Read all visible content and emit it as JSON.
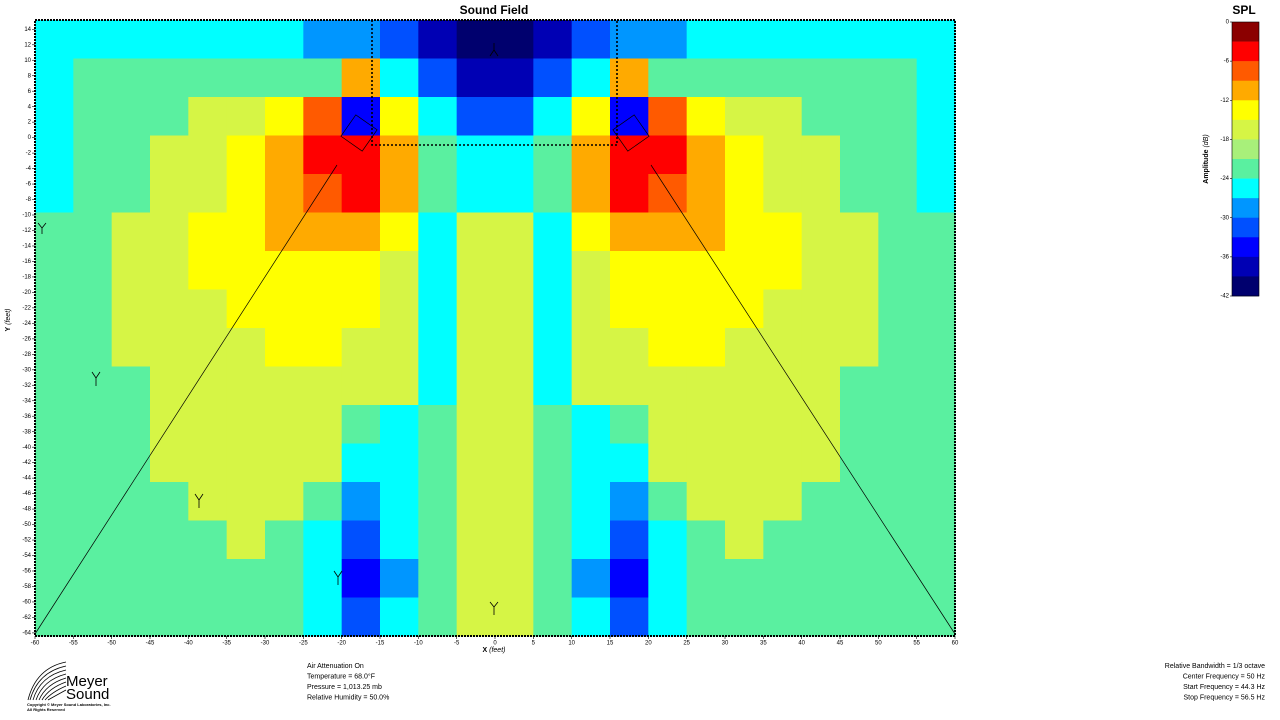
{
  "chart_data": {
    "type": "heatmap",
    "title": "Sound Field",
    "xlabel": "X",
    "xunit": "(feet)",
    "ylabel": "Y",
    "yunit": "(feet)",
    "xlim": [
      -60,
      60
    ],
    "ylim": [
      -64.4,
      15.2
    ],
    "xticks": [
      -60,
      -55,
      -50,
      -45,
      -40,
      -35,
      -30,
      -25,
      -20,
      -15,
      -10,
      -5,
      0,
      5,
      10,
      15,
      20,
      25,
      30,
      35,
      40,
      45,
      50,
      55,
      60
    ],
    "yticks": [
      14,
      12,
      10,
      8,
      6,
      4,
      2,
      0,
      -2,
      -4,
      -6,
      -8,
      -10,
      -12,
      -14,
      -16,
      -18,
      -20,
      -22,
      -24,
      -26,
      -28,
      -30,
      -32,
      -34,
      -36,
      -38,
      -40,
      -42,
      -44,
      -46,
      -48,
      -50,
      -52,
      -54,
      -56,
      -58,
      -60,
      -62,
      -64
    ],
    "colorbar_title": "SPL",
    "colorbar_label": "Amplitude",
    "colorbar_unit": "(dB)",
    "zlim": [
      -42,
      0
    ],
    "zticks": [
      0,
      -6,
      -12,
      -18,
      -24,
      -30,
      -36,
      -42
    ],
    "colors": [
      "#8b0000",
      "#ff0000",
      "#ff5a00",
      "#ffaa00",
      "#ffff00",
      "#d6f545",
      "#a8f07a",
      "#5af0a0",
      "#00ffff",
      "#0096ff",
      "#0050ff",
      "#0000ff",
      "#0000b4",
      "#00006e"
    ],
    "z": [
      [
        -25.5,
        -25.5,
        -25.5,
        -25.5,
        -25.5,
        -25.5,
        -25.5,
        -28.5,
        -28.5,
        -31.5,
        -37.5,
        -40.5,
        -40.5,
        -37.5,
        -31.5,
        -28.5,
        -28.5,
        -25.5,
        -25.5,
        -25.5,
        -25.5,
        -25.5,
        -25.5,
        -25.5
      ],
      [
        -25.5,
        -22.5,
        -22.5,
        -22.5,
        -22.5,
        -22.5,
        -22.5,
        -22.5,
        -10.5,
        -25.5,
        -31.5,
        -37.5,
        -37.5,
        -31.5,
        -25.5,
        -10.5,
        -22.5,
        -22.5,
        -22.5,
        -22.5,
        -22.5,
        -22.5,
        -22.5,
        -25.5
      ],
      [
        -25.5,
        -22.5,
        -22.5,
        -22.5,
        -16.5,
        -16.5,
        -13.5,
        -7.5,
        -34.5,
        -13.5,
        -25.5,
        -31.5,
        -31.5,
        -25.5,
        -13.5,
        -34.5,
        -7.5,
        -13.5,
        -16.5,
        -16.5,
        -22.5,
        -22.5,
        -22.5,
        -25.5
      ],
      [
        -25.5,
        -22.5,
        -22.5,
        -16.5,
        -16.5,
        -13.5,
        -10.5,
        -4.5,
        -4.5,
        -10.5,
        -22.5,
        -25.5,
        -25.5,
        -22.5,
        -10.5,
        -4.5,
        -4.5,
        -10.5,
        -13.5,
        -16.5,
        -16.5,
        -22.5,
        -22.5,
        -25.5
      ],
      [
        -25.5,
        -22.5,
        -22.5,
        -16.5,
        -16.5,
        -13.5,
        -10.5,
        -7.5,
        -4.5,
        -10.5,
        -22.5,
        -25.5,
        -25.5,
        -22.5,
        -10.5,
        -4.5,
        -7.5,
        -10.5,
        -13.5,
        -16.5,
        -16.5,
        -22.5,
        -22.5,
        -25.5
      ],
      [
        -22.5,
        -22.5,
        -16.5,
        -16.5,
        -13.5,
        -13.5,
        -10.5,
        -10.5,
        -10.5,
        -13.5,
        -25.5,
        -16.5,
        -16.5,
        -25.5,
        -13.5,
        -10.5,
        -10.5,
        -10.5,
        -13.5,
        -13.5,
        -16.5,
        -16.5,
        -22.5,
        -22.5
      ],
      [
        -22.5,
        -22.5,
        -16.5,
        -16.5,
        -13.5,
        -13.5,
        -13.5,
        -13.5,
        -13.5,
        -16.5,
        -25.5,
        -16.5,
        -16.5,
        -25.5,
        -16.5,
        -13.5,
        -13.5,
        -13.5,
        -13.5,
        -13.5,
        -16.5,
        -16.5,
        -22.5,
        -22.5
      ],
      [
        -22.5,
        -22.5,
        -16.5,
        -16.5,
        -16.5,
        -13.5,
        -13.5,
        -13.5,
        -13.5,
        -16.5,
        -25.5,
        -16.5,
        -16.5,
        -25.5,
        -16.5,
        -13.5,
        -13.5,
        -13.5,
        -13.5,
        -16.5,
        -16.5,
        -16.5,
        -22.5,
        -22.5
      ],
      [
        -22.5,
        -22.5,
        -16.5,
        -16.5,
        -16.5,
        -16.5,
        -13.5,
        -13.5,
        -16.5,
        -16.5,
        -25.5,
        -16.5,
        -16.5,
        -25.5,
        -16.5,
        -16.5,
        -13.5,
        -13.5,
        -16.5,
        -16.5,
        -16.5,
        -16.5,
        -22.5,
        -22.5
      ],
      [
        -22.5,
        -22.5,
        -22.5,
        -16.5,
        -16.5,
        -16.5,
        -16.5,
        -16.5,
        -16.5,
        -16.5,
        -25.5,
        -16.5,
        -16.5,
        -25.5,
        -16.5,
        -16.5,
        -16.5,
        -16.5,
        -16.5,
        -16.5,
        -16.5,
        -22.5,
        -22.5,
        -22.5
      ],
      [
        -22.5,
        -22.5,
        -22.5,
        -16.5,
        -16.5,
        -16.5,
        -16.5,
        -16.5,
        -22.5,
        -25.5,
        -22.5,
        -16.5,
        -16.5,
        -22.5,
        -25.5,
        -22.5,
        -16.5,
        -16.5,
        -16.5,
        -16.5,
        -16.5,
        -22.5,
        -22.5,
        -22.5
      ],
      [
        -22.5,
        -22.5,
        -22.5,
        -16.5,
        -16.5,
        -16.5,
        -16.5,
        -16.5,
        -25.5,
        -25.5,
        -22.5,
        -16.5,
        -16.5,
        -22.5,
        -25.5,
        -25.5,
        -16.5,
        -16.5,
        -16.5,
        -16.5,
        -16.5,
        -22.5,
        -22.5,
        -22.5
      ],
      [
        -22.5,
        -22.5,
        -22.5,
        -22.5,
        -16.5,
        -16.5,
        -16.5,
        -22.5,
        -28.5,
        -25.5,
        -22.5,
        -16.5,
        -16.5,
        -22.5,
        -25.5,
        -28.5,
        -22.5,
        -16.5,
        -16.5,
        -16.5,
        -22.5,
        -22.5,
        -22.5,
        -22.5
      ],
      [
        -22.5,
        -22.5,
        -22.5,
        -22.5,
        -22.5,
        -16.5,
        -22.5,
        -25.5,
        -31.5,
        -25.5,
        -22.5,
        -16.5,
        -16.5,
        -22.5,
        -25.5,
        -31.5,
        -25.5,
        -22.5,
        -16.5,
        -22.5,
        -22.5,
        -22.5,
        -22.5,
        -22.5
      ],
      [
        -22.5,
        -22.5,
        -22.5,
        -22.5,
        -22.5,
        -22.5,
        -22.5,
        -25.5,
        -34.5,
        -28.5,
        -22.5,
        -16.5,
        -16.5,
        -22.5,
        -28.5,
        -34.5,
        -25.5,
        -22.5,
        -22.5,
        -22.5,
        -22.5,
        -22.5,
        -22.5,
        -22.5
      ],
      [
        -22.5,
        -22.5,
        -22.5,
        -22.5,
        -22.5,
        -22.5,
        -22.5,
        -25.5,
        -31.5,
        -25.5,
        -22.5,
        -16.5,
        -16.5,
        -22.5,
        -25.5,
        -31.5,
        -25.5,
        -22.5,
        -22.5,
        -22.5,
        -22.5,
        -22.5,
        -22.5,
        -22.5
      ]
    ]
  },
  "logo": {
    "line1": "Meyer",
    "line2": "Sound",
    "copyright": "Copyright © Meyer Sound Laboratories, Inc.",
    "rights": "All Rights Reserved"
  },
  "environment": [
    "Air Attenuation On",
    "Temperature = 68.0°F",
    "Pressure = 1,013.25  mb",
    "Relative Humidity = 50.0%"
  ],
  "frequency": [
    "Relative Bandwidth = 1/3 octave",
    "Center Frequency = 50 Hz",
    "Start Frequency = 44.3 Hz",
    "Stop Frequency = 56.5 Hz"
  ]
}
